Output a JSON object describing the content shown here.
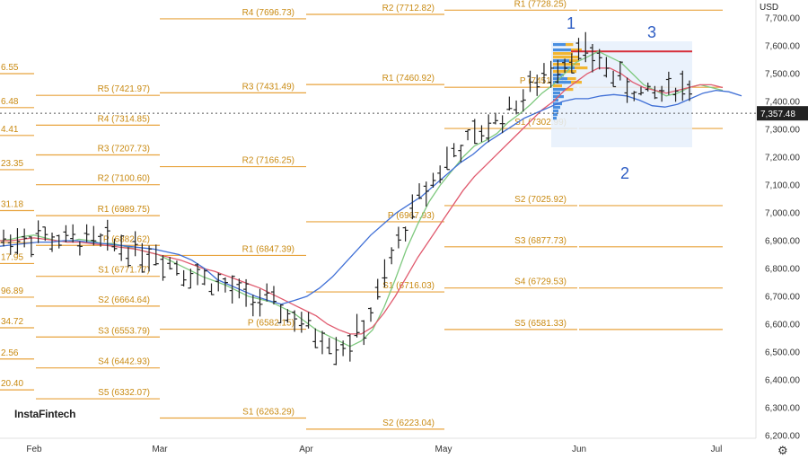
{
  "brand": "InstaFintech",
  "currency": "USD",
  "colors": {
    "pivot": "#e8a33d",
    "price": "#222222",
    "ma_fast": "#7fc97f",
    "ma_mid": "#e05a6e",
    "ma_slow": "#3f6fd6",
    "resistance": "#d62f3a",
    "profile_blue": "#4a8fe0",
    "profile_yellow": "#f2b632"
  },
  "wave_labels": [
    "1",
    "2",
    "3"
  ],
  "chart_data": {
    "type": "line",
    "instrument_hint": "daily OHLC bars with moving averages and monthly pivot levels",
    "ylim": [
      6200,
      7780
    ],
    "y_ticks": [
      "6,200.00",
      "6,300.00",
      "6,400.00",
      "6,500.00",
      "6,600.00",
      "6,700.00",
      "6,800.00",
      "6,900.00",
      "7,000.00",
      "7,100.00",
      "7,200.00",
      "7,300.00",
      "7,400.00",
      "7,500.00",
      "7,600.00",
      "7,700.00"
    ],
    "x_ticks": [
      "Feb",
      "Mar",
      "Apr",
      "May",
      "Jun",
      "Jul"
    ],
    "last_price": "7,357.48",
    "last_price_value": 7357.48,
    "resistance_level": 7580,
    "pivot_groups": [
      {
        "period": "Jan",
        "levels": [
          {
            "label": "6.55",
            "value": 7500
          },
          {
            "label": "6.48",
            "value": 7378
          },
          {
            "label": "4.41",
            "value": 7278
          },
          {
            "label": "23.35",
            "value": 7155
          },
          {
            "label": "31.18",
            "value": 7008
          },
          {
            "label": "17.95",
            "value": 6818
          },
          {
            "label": "96.89",
            "value": 6697
          },
          {
            "label": "34.72",
            "value": 6587
          },
          {
            "label": "2.56",
            "value": 6475
          },
          {
            "label": "20.40",
            "value": 6364
          },
          {
            "label": "",
            "value": 6893
          }
        ]
      },
      {
        "period": "Feb",
        "levels": [
          {
            "label": "R5 (7421.97)",
            "value": 7422
          },
          {
            "label": "R4 (7314.85)",
            "value": 7315
          },
          {
            "label": "R3 (7207.73)",
            "value": 7208
          },
          {
            "label": "R2 (7100.60)",
            "value": 7101
          },
          {
            "label": "R1 (6989.75)",
            "value": 6990
          },
          {
            "label": "P (6882.62)",
            "value": 6883
          },
          {
            "label": "S1 (6771.77)",
            "value": 6772
          },
          {
            "label": "S2 (6664.64)",
            "value": 6665
          },
          {
            "label": "S3 (6553.79)",
            "value": 6554
          },
          {
            "label": "S4 (6442.93)",
            "value": 6443
          },
          {
            "label": "S5 (6332.07)",
            "value": 6332
          }
        ]
      },
      {
        "period": "Mar",
        "levels": [
          {
            "label": "R4 (7696.73)",
            "value": 7697
          },
          {
            "label": "R3 (7431.49)",
            "value": 7431
          },
          {
            "label": "R2 (7166.25)",
            "value": 7166
          },
          {
            "label": "R1 (6847.39)",
            "value": 6847
          },
          {
            "label": "P (6582.15)",
            "value": 6582
          },
          {
            "label": "S1 (6263.29)",
            "value": 6263
          }
        ]
      },
      {
        "period": "Apr",
        "levels": [
          {
            "label": "R2 (7712.82)",
            "value": 7713
          },
          {
            "label": "R1 (7460.92)",
            "value": 7461
          },
          {
            "label": "P (6967.93)",
            "value": 6968
          },
          {
            "label": "S1 (6716.03)",
            "value": 6716
          },
          {
            "label": "S2 (6223.04)",
            "value": 6223
          }
        ]
      },
      {
        "period": "May",
        "levels": [
          {
            "label": "R1 (7728.25)",
            "value": 7728
          },
          {
            "label": "P (7451.19)",
            "value": 7451
          },
          {
            "label": "S1 (7302.99)",
            "value": 7303
          },
          {
            "label": "S2 (7025.92)",
            "value": 7026
          },
          {
            "label": "S3 (6877.73)",
            "value": 6878
          },
          {
            "label": "S4 (6729.53)",
            "value": 6730
          },
          {
            "label": "S5 (6581.33)",
            "value": 6581
          }
        ]
      }
    ],
    "series": [
      {
        "key": "ma_fast",
        "values": [
          6900,
          6905,
          6915,
          6920,
          6910,
          6900,
          6895,
          6905,
          6900,
          6890,
          6890,
          6880,
          6870,
          6860,
          6850,
          6830,
          6810,
          6790,
          6770,
          6755,
          6740,
          6720,
          6700,
          6690,
          6680,
          6660,
          6640,
          6610,
          6580,
          6560,
          6540,
          6520,
          6540,
          6580,
          6660,
          6760,
          6870,
          6960,
          7040,
          7100,
          7150,
          7200,
          7240,
          7260,
          7285,
          7325,
          7355,
          7390,
          7430,
          7460,
          7500,
          7540,
          7560,
          7580,
          7560,
          7540,
          7500,
          7460,
          7440,
          7420,
          7430,
          7450,
          7460,
          7450,
          7440
        ]
      },
      {
        "key": "ma_mid",
        "values": [
          6900,
          6900,
          6905,
          6910,
          6905,
          6900,
          6895,
          6895,
          6890,
          6885,
          6880,
          6875,
          6870,
          6860,
          6850,
          6840,
          6830,
          6815,
          6800,
          6790,
          6775,
          6760,
          6745,
          6730,
          6710,
          6690,
          6670,
          6650,
          6630,
          6600,
          6580,
          6565,
          6565,
          6590,
          6640,
          6700,
          6770,
          6840,
          6900,
          6960,
          7020,
          7080,
          7130,
          7170,
          7210,
          7250,
          7290,
          7330,
          7370,
          7400,
          7440,
          7470,
          7500,
          7520,
          7520,
          7500,
          7470,
          7450,
          7440,
          7430,
          7440,
          7450,
          7460,
          7460,
          7450
        ]
      },
      {
        "key": "ma_slow",
        "values": [
          6880,
          6885,
          6890,
          6895,
          6895,
          6900,
          6900,
          6895,
          6890,
          6885,
          6880,
          6875,
          6870,
          6860,
          6850,
          6830,
          6800,
          6760,
          6740,
          6720,
          6700,
          6685,
          6672,
          6685,
          6700,
          6730,
          6770,
          6820,
          6870,
          6920,
          6960,
          7000,
          7030,
          7060,
          7100,
          7140,
          7180,
          7210,
          7250,
          7280,
          7310,
          7340,
          7360,
          7380,
          7400,
          7410,
          7410,
          7420,
          7425,
          7420,
          7405,
          7385,
          7380,
          7390,
          7410,
          7430,
          7440,
          7435,
          7420
        ]
      }
    ]
  }
}
